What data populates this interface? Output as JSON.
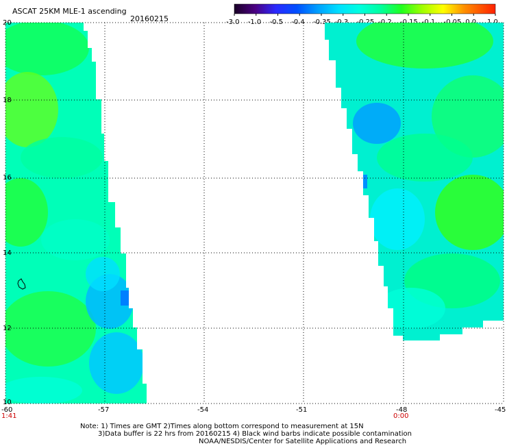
{
  "header": {
    "title": "ASCAT 25KM MLE-1 ascending",
    "date": "20160215"
  },
  "colorbar": {
    "labels": [
      "-3.0",
      "-1.0",
      "-0.5",
      "-0.4",
      "-0.35",
      "-0.3",
      "-0.25",
      "-0.2",
      "-0.15",
      "-0.1",
      "-0.05",
      "0.0",
      "1.0"
    ],
    "colors": [
      "#1a0026",
      "#4b0082",
      "#2a2aff",
      "#0070ff",
      "#00a8ff",
      "#00e0ff",
      "#00ffd8",
      "#00ff90",
      "#20ff20",
      "#90ff00",
      "#ffff00",
      "#ff8000",
      "#ff2000"
    ]
  },
  "map": {
    "lat_labels": [
      "20",
      "18",
      "16",
      "14",
      "12",
      "10"
    ],
    "lon_labels": [
      "-60",
      "-57",
      "-54",
      "-51",
      "-48",
      "-45"
    ],
    "time_labels": {
      "left": "1:41",
      "right": "0:00"
    },
    "time_color": "#cc0000"
  },
  "notes": {
    "line1": "Note: 1) Times are GMT 2)Times along bottom correspond to measurement at 15N",
    "line2": "3)Data buffer is 22 hrs from 20160215 4) Black wind barbs indicate possible contamination",
    "line3": "NOAA/NESDIS/Center for Satellite Applications and Research"
  }
}
